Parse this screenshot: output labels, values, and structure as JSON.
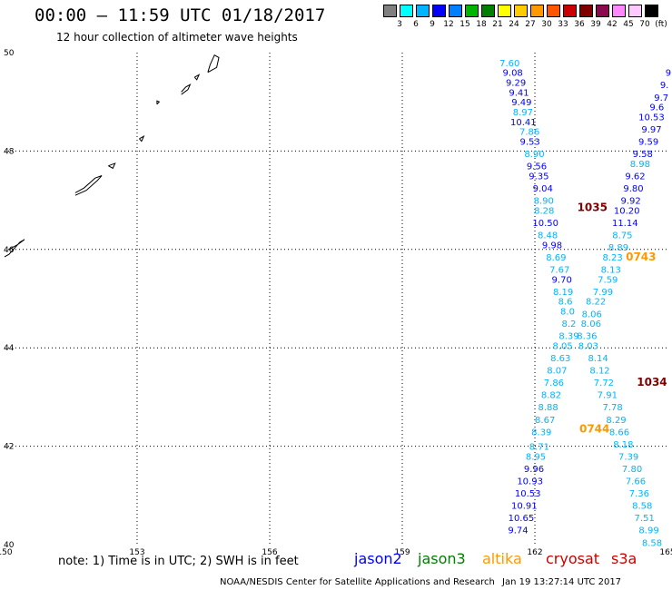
{
  "header": {
    "title": "00:00 – 11:59 UTC 01/18/2017",
    "subtitle": "12 hour collection of altimeter wave heights"
  },
  "colorbar": {
    "unit": "(ft)",
    "colors": [
      "#808080",
      "#00ffff",
      "#00b4ff",
      "#0000ff",
      "#0080ff",
      "#00b400",
      "#008000",
      "#ffff00",
      "#ffcc00",
      "#ff9900",
      "#ff5500",
      "#cc0000",
      "#800000",
      "#8b0a50",
      "#ff88ff",
      "#ffc8ff",
      "#000000"
    ],
    "labels": [
      "3",
      "6",
      "9",
      "12",
      "15",
      "18",
      "21",
      "24",
      "27",
      "30",
      "33",
      "36",
      "39",
      "42",
      "45",
      "70"
    ]
  },
  "legend": {
    "note": "note: 1) Time is in UTC; 2) SWH is in feet",
    "satellites": [
      {
        "name": "jason2",
        "color": "#0000ff"
      },
      {
        "name": "jason3",
        "color": "#008000"
      },
      {
        "name": "altika",
        "color": "#ff9900"
      },
      {
        "name": "cryosat",
        "color": "#cc0000"
      },
      {
        "name": "s3a",
        "color": "#cc0000"
      }
    ]
  },
  "footer": {
    "left": "NOAA/NESDIS Center for Satellite Applications and Research",
    "right": "Jan 19 13:27:14 UTC 2017"
  },
  "chart_data": {
    "type": "scatter",
    "xlim": [
      150,
      165
    ],
    "ylim": [
      40,
      50
    ],
    "x_ticks": [
      150,
      153,
      156,
      159,
      162,
      165
    ],
    "y_ticks": [
      40,
      42,
      44,
      46,
      48,
      50
    ],
    "grid": true,
    "track_times": [
      {
        "label": "1035",
        "lon": 163.3,
        "lat": 46.85,
        "color": "#800000"
      },
      {
        "label": "0743",
        "lon": 164.4,
        "lat": 45.85,
        "color": "#ff9900"
      },
      {
        "label": "1034",
        "lon": 164.65,
        "lat": 43.3,
        "color": "#800000"
      },
      {
        "label": "0744",
        "lon": 163.35,
        "lat": 42.35,
        "color": "#ff9900"
      }
    ],
    "series": [
      {
        "name": "track A",
        "points": [
          {
            "lon": 161.43,
            "lat": 49.8,
            "v": "7.60",
            "c": "#00b4ff"
          },
          {
            "lon": 161.5,
            "lat": 49.6,
            "v": "9.08",
            "c": "#0000ff"
          },
          {
            "lon": 161.57,
            "lat": 49.4,
            "v": "9.29",
            "c": "#0000ff"
          },
          {
            "lon": 161.64,
            "lat": 49.2,
            "v": "9.41",
            "c": "#0000ff"
          },
          {
            "lon": 161.7,
            "lat": 49.0,
            "v": "9.49",
            "c": "#0000ff"
          },
          {
            "lon": 161.73,
            "lat": 48.8,
            "v": "8.97",
            "c": "#00b4ff"
          },
          {
            "lon": 161.74,
            "lat": 48.6,
            "v": "10.41",
            "c": "#0000ff"
          },
          {
            "lon": 161.88,
            "lat": 48.4,
            "v": "7.86",
            "c": "#00b4ff"
          },
          {
            "lon": 161.89,
            "lat": 48.2,
            "v": "9.53",
            "c": "#0000ff"
          },
          {
            "lon": 161.99,
            "lat": 47.95,
            "v": "8.90",
            "c": "#00b4ff"
          },
          {
            "lon": 162.04,
            "lat": 47.7,
            "v": "9.56",
            "c": "#0000ff"
          },
          {
            "lon": 162.09,
            "lat": 47.5,
            "v": "9.35",
            "c": "#0000ff"
          },
          {
            "lon": 162.18,
            "lat": 47.25,
            "v": "9.04",
            "c": "#0000ff"
          },
          {
            "lon": 162.2,
            "lat": 47.0,
            "v": "8.90",
            "c": "#00b4ff"
          },
          {
            "lon": 162.21,
            "lat": 46.8,
            "v": "8.28",
            "c": "#00b4ff"
          },
          {
            "lon": 162.24,
            "lat": 46.55,
            "v": "10.50",
            "c": "#0000ff"
          },
          {
            "lon": 162.29,
            "lat": 46.3,
            "v": "8.48",
            "c": "#00b4ff"
          },
          {
            "lon": 162.39,
            "lat": 46.1,
            "v": "9.98",
            "c": "#0000ff"
          },
          {
            "lon": 162.48,
            "lat": 45.85,
            "v": "8.69",
            "c": "#00b4ff"
          },
          {
            "lon": 162.56,
            "lat": 45.6,
            "v": "7.67",
            "c": "#00b4ff"
          },
          {
            "lon": 162.61,
            "lat": 45.4,
            "v": "9.70",
            "c": "#0000ff"
          },
          {
            "lon": 162.64,
            "lat": 45.15,
            "v": "8.19",
            "c": "#00b4ff"
          },
          {
            "lon": 162.69,
            "lat": 44.95,
            "v": "8.6",
            "c": "#00b4ff"
          },
          {
            "lon": 162.74,
            "lat": 44.75,
            "v": "8.0",
            "c": "#00b4ff"
          },
          {
            "lon": 162.77,
            "lat": 44.5,
            "v": "8.2",
            "c": "#00b4ff"
          },
          {
            "lon": 162.77,
            "lat": 44.25,
            "v": "8.39",
            "c": "#00b4ff"
          },
          {
            "lon": 162.63,
            "lat": 44.05,
            "v": "8.05",
            "c": "#00b4ff"
          },
          {
            "lon": 162.58,
            "lat": 43.8,
            "v": "8.63",
            "c": "#00b4ff"
          },
          {
            "lon": 162.5,
            "lat": 43.55,
            "v": "8.07",
            "c": "#00b4ff"
          },
          {
            "lon": 162.43,
            "lat": 43.3,
            "v": "7.86",
            "c": "#00b4ff"
          },
          {
            "lon": 162.37,
            "lat": 43.05,
            "v": "8.82",
            "c": "#00b4ff"
          },
          {
            "lon": 162.3,
            "lat": 42.8,
            "v": "8.88",
            "c": "#00b4ff"
          },
          {
            "lon": 162.23,
            "lat": 42.55,
            "v": "8.67",
            "c": "#00b4ff"
          },
          {
            "lon": 162.15,
            "lat": 42.3,
            "v": "8.39",
            "c": "#00b4ff"
          },
          {
            "lon": 162.1,
            "lat": 42.0,
            "v": "8.71",
            "c": "#00b4ff"
          },
          {
            "lon": 162.02,
            "lat": 41.8,
            "v": "8.95",
            "c": "#00b4ff"
          },
          {
            "lon": 161.98,
            "lat": 41.55,
            "v": "9.96",
            "c": "#0000ff"
          },
          {
            "lon": 161.89,
            "lat": 41.3,
            "v": "10.93",
            "c": "#0000ff"
          },
          {
            "lon": 161.84,
            "lat": 41.05,
            "v": "10.53",
            "c": "#0000ff"
          },
          {
            "lon": 161.76,
            "lat": 40.8,
            "v": "10.91",
            "c": "#0000ff"
          },
          {
            "lon": 161.69,
            "lat": 40.55,
            "v": "10.65",
            "c": "#0000ff"
          },
          {
            "lon": 161.62,
            "lat": 40.3,
            "v": "9.74",
            "c": "#0000ff"
          }
        ]
      },
      {
        "name": "track B",
        "points": [
          {
            "lon": 165.02,
            "lat": 49.6,
            "v": "9",
            "c": "#0000ff"
          },
          {
            "lon": 164.93,
            "lat": 49.35,
            "v": "9.",
            "c": "#0000ff"
          },
          {
            "lon": 164.86,
            "lat": 49.1,
            "v": "9.7",
            "c": "#0000ff"
          },
          {
            "lon": 164.76,
            "lat": 48.9,
            "v": "9.6",
            "c": "#0000ff"
          },
          {
            "lon": 164.64,
            "lat": 48.7,
            "v": "10.53",
            "c": "#0000ff"
          },
          {
            "lon": 164.64,
            "lat": 48.45,
            "v": "9.97",
            "c": "#0000ff"
          },
          {
            "lon": 164.57,
            "lat": 48.2,
            "v": "9.59",
            "c": "#0000ff"
          },
          {
            "lon": 164.44,
            "lat": 47.95,
            "v": "9.58",
            "c": "#0000ff"
          },
          {
            "lon": 164.38,
            "lat": 47.75,
            "v": "8.98",
            "c": "#00b4ff"
          },
          {
            "lon": 164.27,
            "lat": 47.5,
            "v": "9.62",
            "c": "#0000ff"
          },
          {
            "lon": 164.23,
            "lat": 47.25,
            "v": "9.80",
            "c": "#0000ff"
          },
          {
            "lon": 164.17,
            "lat": 47.0,
            "v": "9.92",
            "c": "#0000ff"
          },
          {
            "lon": 164.08,
            "lat": 46.8,
            "v": "10.20",
            "c": "#0000ff"
          },
          {
            "lon": 164.04,
            "lat": 46.55,
            "v": "11.14",
            "c": "#0000ff"
          },
          {
            "lon": 163.98,
            "lat": 46.3,
            "v": "8.75",
            "c": "#00b4ff"
          },
          {
            "lon": 163.89,
            "lat": 46.05,
            "v": "8.89",
            "c": "#00b4ff"
          },
          {
            "lon": 163.76,
            "lat": 45.85,
            "v": "8.23",
            "c": "#00b4ff"
          },
          {
            "lon": 163.72,
            "lat": 45.6,
            "v": "8.13",
            "c": "#00b4ff"
          },
          {
            "lon": 163.65,
            "lat": 45.4,
            "v": "7.59",
            "c": "#00b4ff"
          },
          {
            "lon": 163.54,
            "lat": 45.15,
            "v": "7.99",
            "c": "#00b4ff"
          },
          {
            "lon": 163.38,
            "lat": 44.95,
            "v": "8.22",
            "c": "#00b4ff"
          },
          {
            "lon": 163.29,
            "lat": 44.7,
            "v": "8.06",
            "c": "#00b4ff"
          },
          {
            "lon": 163.27,
            "lat": 44.5,
            "v": "8.06",
            "c": "#00b4ff"
          },
          {
            "lon": 163.18,
            "lat": 44.25,
            "v": "8.36",
            "c": "#00b4ff"
          },
          {
            "lon": 163.21,
            "lat": 44.05,
            "v": "8.03",
            "c": "#00b4ff"
          },
          {
            "lon": 163.43,
            "lat": 43.8,
            "v": "8.14",
            "c": "#00b4ff"
          },
          {
            "lon": 163.47,
            "lat": 43.55,
            "v": "8.12",
            "c": "#00b4ff"
          },
          {
            "lon": 163.56,
            "lat": 43.3,
            "v": "7.72",
            "c": "#00b4ff"
          },
          {
            "lon": 163.64,
            "lat": 43.05,
            "v": "7.91",
            "c": "#00b4ff"
          },
          {
            "lon": 163.76,
            "lat": 42.8,
            "v": "7.78",
            "c": "#00b4ff"
          },
          {
            "lon": 163.84,
            "lat": 42.55,
            "v": "8.29",
            "c": "#00b4ff"
          },
          {
            "lon": 163.91,
            "lat": 42.3,
            "v": "8.66",
            "c": "#00b4ff"
          },
          {
            "lon": 164.0,
            "lat": 42.05,
            "v": "8.18",
            "c": "#00b4ff"
          },
          {
            "lon": 164.12,
            "lat": 41.8,
            "v": "7.39",
            "c": "#00b4ff"
          },
          {
            "lon": 164.2,
            "lat": 41.55,
            "v": "7.80",
            "c": "#00b4ff"
          },
          {
            "lon": 164.28,
            "lat": 41.3,
            "v": "7.66",
            "c": "#00b4ff"
          },
          {
            "lon": 164.36,
            "lat": 41.05,
            "v": "7.36",
            "c": "#00b4ff"
          },
          {
            "lon": 164.43,
            "lat": 40.8,
            "v": "8.58",
            "c": "#00b4ff"
          },
          {
            "lon": 164.48,
            "lat": 40.55,
            "v": "7.51",
            "c": "#00b4ff"
          },
          {
            "lon": 164.58,
            "lat": 40.3,
            "v": "8.99",
            "c": "#00b4ff"
          },
          {
            "lon": 164.65,
            "lat": 40.05,
            "v": "8.58",
            "c": "#00b4ff"
          }
        ]
      }
    ],
    "coastline_islands": [
      [
        [
          150.1,
          46.0
        ],
        [
          150.3,
          46.1
        ],
        [
          150.45,
          46.2
        ],
        [
          150.35,
          46.15
        ],
        [
          150.2,
          46.0
        ],
        [
          150.1,
          45.9
        ],
        [
          150.0,
          45.85
        ]
      ],
      [
        [
          151.6,
          47.1
        ],
        [
          151.85,
          47.2
        ],
        [
          152.1,
          47.4
        ],
        [
          152.2,
          47.5
        ],
        [
          152.05,
          47.45
        ],
        [
          151.8,
          47.25
        ],
        [
          151.6,
          47.15
        ]
      ],
      [
        [
          152.35,
          47.7
        ],
        [
          152.5,
          47.75
        ],
        [
          152.45,
          47.65
        ],
        [
          152.35,
          47.7
        ]
      ],
      [
        [
          153.05,
          48.25
        ],
        [
          153.15,
          48.3
        ],
        [
          153.1,
          48.2
        ],
        [
          153.05,
          48.25
        ]
      ],
      [
        [
          154.0,
          49.15
        ],
        [
          154.15,
          49.25
        ],
        [
          154.2,
          49.35
        ],
        [
          154.1,
          49.3
        ],
        [
          154.0,
          49.2
        ]
      ],
      [
        [
          154.6,
          49.6
        ],
        [
          154.8,
          49.7
        ],
        [
          154.85,
          49.9
        ],
        [
          154.75,
          49.95
        ],
        [
          154.65,
          49.75
        ],
        [
          154.6,
          49.6
        ]
      ],
      [
        [
          154.3,
          49.5
        ],
        [
          154.4,
          49.55
        ],
        [
          154.35,
          49.45
        ],
        [
          154.3,
          49.5
        ]
      ],
      [
        [
          153.45,
          48.95
        ],
        [
          153.5,
          49.0
        ],
        [
          153.45,
          49.02
        ],
        [
          153.45,
          48.95
        ]
      ]
    ]
  }
}
